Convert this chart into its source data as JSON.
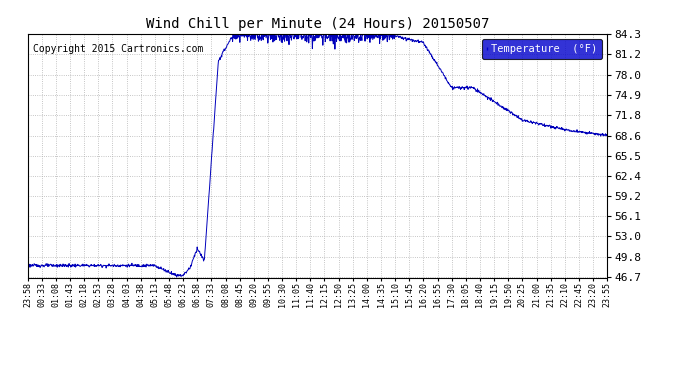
{
  "title": "Wind Chill per Minute (24 Hours) 20150507",
  "copyright": "Copyright 2015 Cartronics.com",
  "legend_label": "Temperature  (°F)",
  "line_color": "#0000bb",
  "background_color": "#ffffff",
  "plot_bg_color": "#ffffff",
  "grid_color": "#999999",
  "ylim": [
    46.7,
    84.3
  ],
  "yticks": [
    46.7,
    49.8,
    53.0,
    56.1,
    59.2,
    62.4,
    65.5,
    68.6,
    71.8,
    74.9,
    78.0,
    81.2,
    84.3
  ],
  "xtick_labels": [
    "23:58",
    "00:33",
    "01:08",
    "01:43",
    "02:18",
    "02:53",
    "03:28",
    "04:03",
    "04:38",
    "05:13",
    "05:48",
    "06:23",
    "06:58",
    "07:33",
    "08:08",
    "08:45",
    "09:20",
    "09:55",
    "10:30",
    "11:05",
    "11:40",
    "12:15",
    "12:50",
    "13:25",
    "14:00",
    "14:35",
    "15:10",
    "15:45",
    "16:20",
    "16:55",
    "17:30",
    "18:05",
    "18:40",
    "19:15",
    "19:50",
    "20:25",
    "21:00",
    "21:35",
    "22:10",
    "22:45",
    "23:20",
    "23:55"
  ]
}
